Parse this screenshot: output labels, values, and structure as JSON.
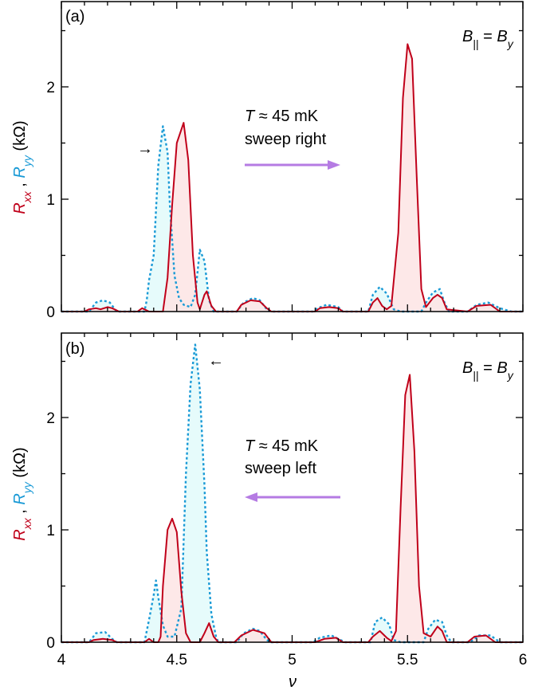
{
  "colors": {
    "rxx": "#c0001a",
    "ryy": "#1a9ad6",
    "rxx_fill": "#fde4e4",
    "ryy_fill": "#e3fbfb",
    "arrow": "#b57be3",
    "axis": "#000000"
  },
  "xlabel": "ν",
  "ylabel": {
    "r1": "R",
    "r1_sub": "xx",
    "sep": " , ",
    "r2": "R",
    "r2_sub": "yy",
    "unit": " (kΩ)"
  },
  "field": {
    "b": "B",
    "sub": "||",
    "eq": " = ",
    "b2": "B",
    "sub2": "y"
  },
  "panels": [
    {
      "label": "(a)",
      "temp_symbol": "T",
      "temp_text": " ≈ 45 mK",
      "sweep": "sweep right",
      "arrow_direction": "right",
      "ryy_marker": "→"
    },
    {
      "label": "(b)",
      "temp_symbol": "T",
      "temp_text": " ≈ 45 mK",
      "sweep": "sweep left",
      "arrow_direction": "left",
      "ryy_marker": "←"
    }
  ],
  "chart_data": [
    {
      "type": "line",
      "panel": "(a)",
      "xlabel": "ν",
      "ylabel": "Rxx , Ryy (kΩ)",
      "xlim": [
        4,
        6
      ],
      "ylim": [
        0,
        2.5
      ],
      "x_ticks": [
        "4",
        "4.5",
        "5",
        "5.5",
        "6"
      ],
      "y_ticks": [
        "0",
        "1",
        "2"
      ],
      "series": [
        {
          "name": "Rxx",
          "style": "solid",
          "points": [
            [
              4.0,
              0.0
            ],
            [
              4.1,
              0.0
            ],
            [
              4.12,
              0.02
            ],
            [
              4.15,
              0.03
            ],
            [
              4.17,
              0.02
            ],
            [
              4.2,
              0.04
            ],
            [
              4.22,
              0.03
            ],
            [
              4.25,
              0.0
            ],
            [
              4.33,
              0.0
            ],
            [
              4.35,
              0.03
            ],
            [
              4.38,
              0.0
            ],
            [
              4.44,
              0.0
            ],
            [
              4.46,
              0.3
            ],
            [
              4.48,
              0.95
            ],
            [
              4.5,
              1.5
            ],
            [
              4.53,
              1.68
            ],
            [
              4.55,
              1.35
            ],
            [
              4.57,
              0.5
            ],
            [
              4.59,
              0.08
            ],
            [
              4.6,
              0.02
            ],
            [
              4.62,
              0.15
            ],
            [
              4.63,
              0.18
            ],
            [
              4.65,
              0.05
            ],
            [
              4.67,
              0.0
            ],
            [
              4.76,
              0.0
            ],
            [
              4.78,
              0.06
            ],
            [
              4.82,
              0.1
            ],
            [
              4.86,
              0.09
            ],
            [
              4.89,
              0.03
            ],
            [
              4.91,
              0.0
            ],
            [
              5.1,
              0.0
            ],
            [
              5.12,
              0.03
            ],
            [
              5.16,
              0.04
            ],
            [
              5.2,
              0.03
            ],
            [
              5.22,
              0.0
            ],
            [
              5.33,
              0.0
            ],
            [
              5.35,
              0.08
            ],
            [
              5.37,
              0.12
            ],
            [
              5.39,
              0.05
            ],
            [
              5.41,
              0.02
            ],
            [
              5.43,
              0.05
            ],
            [
              5.46,
              0.7
            ],
            [
              5.48,
              1.9
            ],
            [
              5.5,
              2.38
            ],
            [
              5.52,
              2.25
            ],
            [
              5.54,
              1.2
            ],
            [
              5.56,
              0.2
            ],
            [
              5.58,
              0.04
            ],
            [
              5.61,
              0.12
            ],
            [
              5.63,
              0.15
            ],
            [
              5.65,
              0.12
            ],
            [
              5.67,
              0.02
            ],
            [
              5.76,
              0.0
            ],
            [
              5.8,
              0.05
            ],
            [
              5.86,
              0.06
            ],
            [
              5.9,
              0.0
            ],
            [
              6.0,
              0.0
            ]
          ]
        },
        {
          "name": "Ryy",
          "style": "dotted",
          "points": [
            [
              4.0,
              0.0
            ],
            [
              4.12,
              0.0
            ],
            [
              4.15,
              0.08
            ],
            [
              4.18,
              0.1
            ],
            [
              4.21,
              0.08
            ],
            [
              4.24,
              0.0
            ],
            [
              4.36,
              0.0
            ],
            [
              4.37,
              0.1
            ],
            [
              4.38,
              0.28
            ],
            [
              4.4,
              0.5
            ],
            [
              4.42,
              1.3
            ],
            [
              4.44,
              1.65
            ],
            [
              4.46,
              1.42
            ],
            [
              4.47,
              0.95
            ],
            [
              4.49,
              0.32
            ],
            [
              4.51,
              0.12
            ],
            [
              4.53,
              0.06
            ],
            [
              4.56,
              0.04
            ],
            [
              4.58,
              0.15
            ],
            [
              4.6,
              0.55
            ],
            [
              4.62,
              0.45
            ],
            [
              4.64,
              0.1
            ],
            [
              4.66,
              0.0
            ],
            [
              4.76,
              0.0
            ],
            [
              4.79,
              0.08
            ],
            [
              4.83,
              0.12
            ],
            [
              4.86,
              0.1
            ],
            [
              4.89,
              0.02
            ],
            [
              4.91,
              0.0
            ],
            [
              5.09,
              0.0
            ],
            [
              5.11,
              0.03
            ],
            [
              5.15,
              0.06
            ],
            [
              5.2,
              0.04
            ],
            [
              5.22,
              0.0
            ],
            [
              5.33,
              0.0
            ],
            [
              5.35,
              0.15
            ],
            [
              5.38,
              0.22
            ],
            [
              5.41,
              0.16
            ],
            [
              5.44,
              0.02
            ],
            [
              5.47,
              0.0
            ],
            [
              5.56,
              0.0
            ],
            [
              5.58,
              0.08
            ],
            [
              5.61,
              0.17
            ],
            [
              5.64,
              0.2
            ],
            [
              5.66,
              0.08
            ],
            [
              5.68,
              0.0
            ],
            [
              5.76,
              0.0
            ],
            [
              5.8,
              0.06
            ],
            [
              5.85,
              0.08
            ],
            [
              5.9,
              0.03
            ],
            [
              5.95,
              0.0
            ],
            [
              6.0,
              0.0
            ]
          ]
        }
      ]
    },
    {
      "type": "line",
      "panel": "(b)",
      "xlabel": "ν",
      "ylabel": "Rxx , Ryy (kΩ)",
      "xlim": [
        4,
        6
      ],
      "ylim": [
        0,
        2.7
      ],
      "x_ticks": [
        "4",
        "4.5",
        "5",
        "5.5",
        "6"
      ],
      "y_ticks": [
        "0",
        "1",
        "2"
      ],
      "series": [
        {
          "name": "Rxx",
          "style": "solid",
          "points": [
            [
              4.0,
              0.0
            ],
            [
              4.12,
              0.0
            ],
            [
              4.14,
              0.02
            ],
            [
              4.18,
              0.03
            ],
            [
              4.22,
              0.02
            ],
            [
              4.24,
              0.0
            ],
            [
              4.36,
              0.0
            ],
            [
              4.38,
              0.03
            ],
            [
              4.4,
              0.0
            ],
            [
              4.42,
              0.0
            ],
            [
              4.43,
              0.05
            ],
            [
              4.44,
              0.5
            ],
            [
              4.46,
              1.0
            ],
            [
              4.48,
              1.1
            ],
            [
              4.5,
              0.98
            ],
            [
              4.52,
              0.45
            ],
            [
              4.54,
              0.08
            ],
            [
              4.56,
              0.0
            ],
            [
              4.6,
              0.0
            ],
            [
              4.62,
              0.08
            ],
            [
              4.64,
              0.17
            ],
            [
              4.66,
              0.05
            ],
            [
              4.68,
              0.0
            ],
            [
              4.75,
              0.0
            ],
            [
              4.78,
              0.06
            ],
            [
              4.83,
              0.11
            ],
            [
              4.88,
              0.08
            ],
            [
              4.91,
              0.0
            ],
            [
              5.1,
              0.0
            ],
            [
              5.14,
              0.03
            ],
            [
              5.19,
              0.04
            ],
            [
              5.22,
              0.0
            ],
            [
              5.33,
              0.0
            ],
            [
              5.35,
              0.05
            ],
            [
              5.38,
              0.1
            ],
            [
              5.41,
              0.04
            ],
            [
              5.43,
              0.01
            ],
            [
              5.45,
              0.1
            ],
            [
              5.47,
              1.2
            ],
            [
              5.49,
              2.2
            ],
            [
              5.51,
              2.38
            ],
            [
              5.53,
              1.7
            ],
            [
              5.55,
              0.5
            ],
            [
              5.57,
              0.08
            ],
            [
              5.6,
              0.05
            ],
            [
              5.63,
              0.14
            ],
            [
              5.65,
              0.1
            ],
            [
              5.67,
              0.0
            ],
            [
              5.76,
              0.0
            ],
            [
              5.79,
              0.05
            ],
            [
              5.84,
              0.06
            ],
            [
              5.88,
              0.0
            ],
            [
              6.0,
              0.0
            ]
          ]
        },
        {
          "name": "Ryy",
          "style": "dotted",
          "points": [
            [
              4.0,
              0.0
            ],
            [
              4.12,
              0.0
            ],
            [
              4.15,
              0.08
            ],
            [
              4.19,
              0.09
            ],
            [
              4.22,
              0.03
            ],
            [
              4.24,
              0.0
            ],
            [
              4.36,
              0.0
            ],
            [
              4.38,
              0.2
            ],
            [
              4.4,
              0.42
            ],
            [
              4.41,
              0.55
            ],
            [
              4.42,
              0.4
            ],
            [
              4.44,
              0.15
            ],
            [
              4.46,
              0.05
            ],
            [
              4.49,
              0.05
            ],
            [
              4.52,
              0.3
            ],
            [
              4.54,
              1.5
            ],
            [
              4.56,
              2.3
            ],
            [
              4.58,
              2.65
            ],
            [
              4.6,
              2.25
            ],
            [
              4.62,
              1.4
            ],
            [
              4.63,
              0.8
            ],
            [
              4.65,
              0.25
            ],
            [
              4.67,
              0.05
            ],
            [
              4.68,
              0.0
            ],
            [
              4.76,
              0.0
            ],
            [
              4.79,
              0.08
            ],
            [
              4.83,
              0.12
            ],
            [
              4.86,
              0.1
            ],
            [
              4.89,
              0.02
            ],
            [
              4.91,
              0.0
            ],
            [
              5.09,
              0.0
            ],
            [
              5.12,
              0.04
            ],
            [
              5.17,
              0.06
            ],
            [
              5.21,
              0.02
            ],
            [
              5.23,
              0.0
            ],
            [
              5.34,
              0.0
            ],
            [
              5.36,
              0.18
            ],
            [
              5.39,
              0.22
            ],
            [
              5.42,
              0.16
            ],
            [
              5.44,
              0.02
            ],
            [
              5.47,
              0.0
            ],
            [
              5.57,
              0.0
            ],
            [
              5.59,
              0.12
            ],
            [
              5.62,
              0.2
            ],
            [
              5.65,
              0.18
            ],
            [
              5.67,
              0.06
            ],
            [
              5.69,
              0.0
            ],
            [
              5.77,
              0.0
            ],
            [
              5.81,
              0.06
            ],
            [
              5.86,
              0.06
            ],
            [
              5.9,
              0.0
            ],
            [
              6.0,
              0.0
            ]
          ]
        }
      ]
    }
  ]
}
